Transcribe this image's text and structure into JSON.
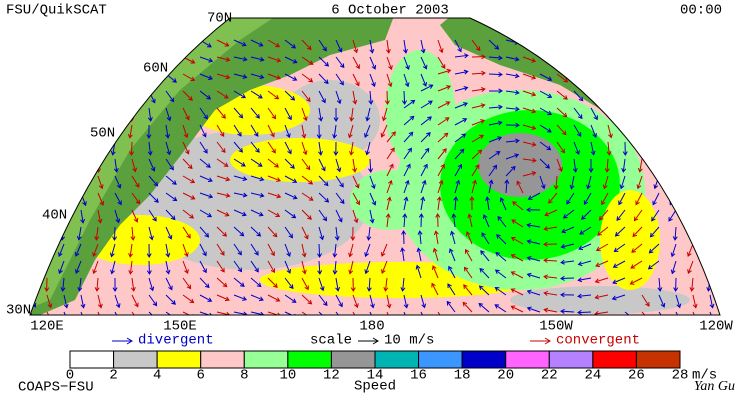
{
  "header": {
    "left": "FSU/QuikSCAT",
    "center": "6 October 2003",
    "right": "00:00"
  },
  "latitude_labels": [
    "70N",
    "60N",
    "50N",
    "40N",
    "30N"
  ],
  "longitude_labels": [
    "120E",
    "150E",
    "180",
    "150W",
    "120W"
  ],
  "legend": {
    "divergent": "divergent",
    "scale": "scale",
    "scale_value": "10 m/s",
    "convergent": "convergent"
  },
  "colorbar": {
    "ticks": [
      0,
      2,
      4,
      6,
      8,
      10,
      12,
      14,
      16,
      18,
      20,
      22,
      24,
      26,
      28
    ],
    "colors": [
      "#ffffff",
      "#c8c8c8",
      "#ffff00",
      "#ffc8c8",
      "#96ff96",
      "#00ff00",
      "#969696",
      "#00b4b4",
      "#3c96ff",
      "#0000c8",
      "#ff64ff",
      "#b482ff",
      "#ff0000",
      "#c83200",
      "#000000"
    ],
    "unit": "m/s",
    "title": "Speed"
  },
  "footer": {
    "left": "COAPS−FSU",
    "right": "Yan Gu"
  }
}
